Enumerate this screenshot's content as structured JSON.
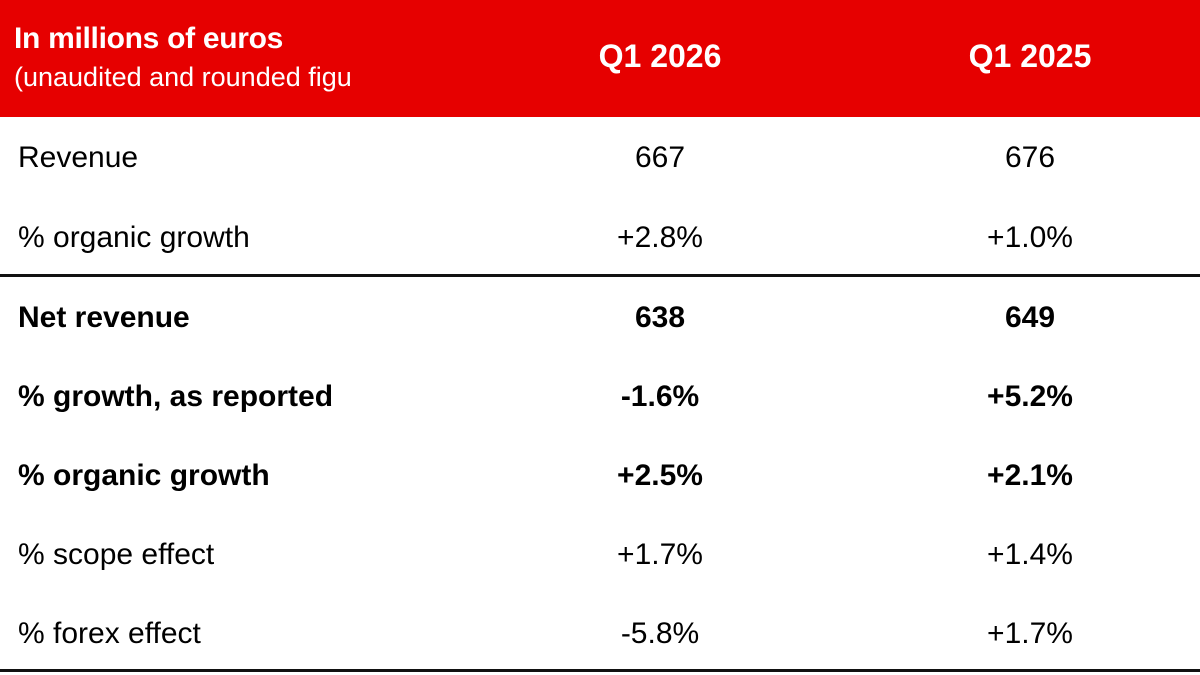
{
  "header": {
    "title": "In millions of euros",
    "subtitle": "(unaudited and rounded figu",
    "columns": [
      "Q1 2026",
      "Q1 2025"
    ],
    "color": "#e60000"
  },
  "rows": [
    {
      "label": "Revenue",
      "q1_2026": "667",
      "q1_2025": "676",
      "bold": false
    },
    {
      "label": "% organic growth",
      "q1_2026": "+2.8%",
      "q1_2025": "+1.0%",
      "bold": false
    },
    {
      "label": "Net revenue",
      "q1_2026": "638",
      "q1_2025": "649",
      "bold": true
    },
    {
      "label": "% growth, as reported",
      "q1_2026": "-1.6%",
      "q1_2025": "+5.2%",
      "bold": true
    },
    {
      "label": "% organic growth",
      "q1_2026": "+2.5%",
      "q1_2025": "+2.1%",
      "bold": true
    },
    {
      "label": "% scope effect",
      "q1_2026": "+1.7%",
      "q1_2025": "+1.4%",
      "bold": false
    },
    {
      "label": "% forex effect",
      "q1_2026": "-5.8%",
      "q1_2025": "+1.7%",
      "bold": false
    }
  ]
}
